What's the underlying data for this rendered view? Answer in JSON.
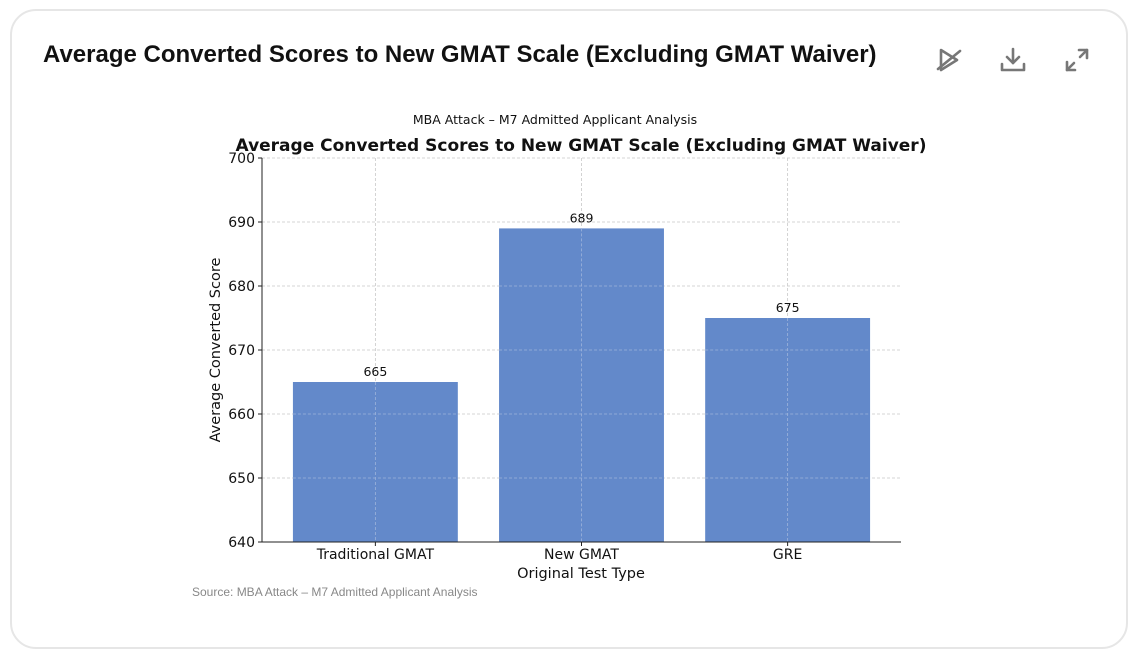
{
  "header": {
    "title": "Average Converted Scores to New GMAT Scale (Excluding GMAT Waiver)",
    "icons": [
      "hide-chart-icon",
      "download-icon",
      "expand-icon"
    ]
  },
  "chart_data": {
    "type": "bar",
    "supertitle": "MBA Attack – M7 Admitted Applicant Analysis",
    "title": "Average Converted Scores to New GMAT Scale (Excluding GMAT Waiver)",
    "categories": [
      "Traditional GMAT",
      "New GMAT",
      "GRE"
    ],
    "values": [
      665,
      689,
      675
    ],
    "data_labels": [
      "665",
      "689",
      "675"
    ],
    "xlabel": "Original Test Type",
    "ylabel": "Average Converted Score",
    "ylim": [
      640,
      700
    ],
    "yticks": [
      "640",
      "650",
      "660",
      "670",
      "680",
      "690",
      "700"
    ],
    "grid": true,
    "bar_color": "#6389ca"
  },
  "footer": {
    "source": "Source: MBA Attack – M7 Admitted Applicant Analysis"
  }
}
